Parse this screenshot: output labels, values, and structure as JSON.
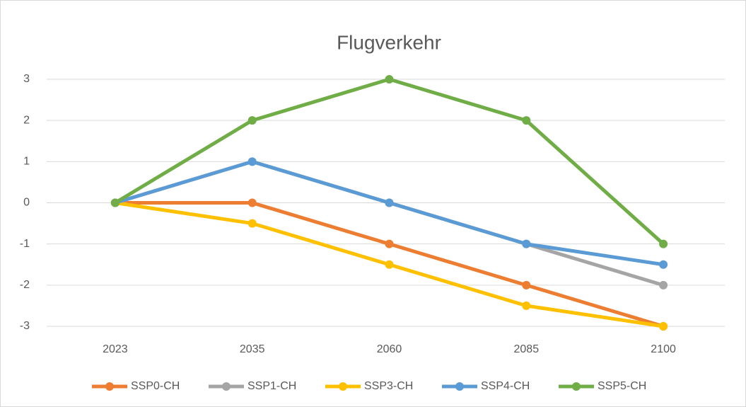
{
  "chart_data": {
    "type": "line",
    "title": "Flugverkehr",
    "categories": [
      "2023",
      "2035",
      "2060",
      "2085",
      "2100"
    ],
    "series": [
      {
        "name": "SSP0-CH",
        "color": "#ED7D31",
        "values": [
          0,
          0,
          -1,
          -2,
          -3
        ]
      },
      {
        "name": "SSP1-CH",
        "color": "#A5A5A5",
        "values": [
          0,
          1,
          0,
          -1,
          -2
        ]
      },
      {
        "name": "SSP3-CH",
        "color": "#FFC000",
        "values": [
          0,
          -0.5,
          -1.5,
          -2.5,
          -3
        ]
      },
      {
        "name": "SSP4-CH",
        "color": "#5B9BD5",
        "values": [
          0,
          1,
          0,
          -1,
          -1.5
        ]
      },
      {
        "name": "SSP5-CH",
        "color": "#70AD47",
        "values": [
          0,
          2,
          3,
          2,
          -1
        ]
      }
    ],
    "ylim": [
      -3,
      3
    ],
    "yticks": [
      -3,
      -2,
      -1,
      0,
      1,
      2,
      3
    ],
    "grid": true,
    "legend": "bottom"
  }
}
